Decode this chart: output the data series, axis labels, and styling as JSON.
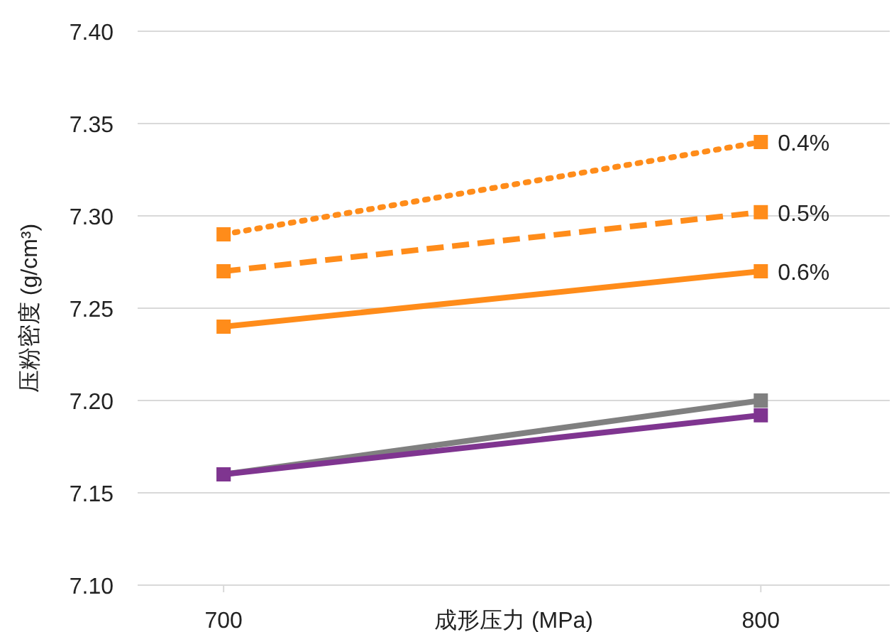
{
  "chart_data": {
    "type": "line",
    "xlabel": "成形压力 (MPa)",
    "ylabel": "压粉密度 (g/cm³)",
    "x": [
      700,
      800
    ],
    "xlim": [
      684,
      824
    ],
    "xticks": [
      700,
      800
    ],
    "ylim": [
      7.1,
      7.4
    ],
    "yticks": [
      {
        "value": 7.1,
        "label": "7.10"
      },
      7.15,
      {
        "value": 7.2,
        "label": "7.20"
      },
      7.25,
      {
        "value": 7.3,
        "label": "7.30"
      },
      7.35,
      {
        "value": 7.4,
        "label": "7.40"
      }
    ],
    "grid": "y",
    "marker": "square",
    "series": [
      {
        "name": "0.4%",
        "color": "#ff8c1a",
        "line_style": "dotted",
        "values": [
          7.29,
          7.34
        ]
      },
      {
        "name": "0.5%",
        "color": "#ff8c1a",
        "line_style": "dashed",
        "values": [
          7.27,
          7.302
        ]
      },
      {
        "name": "0.6%",
        "color": "#ff8c1a",
        "line_style": "solid",
        "values": [
          7.24,
          7.27
        ]
      },
      {
        "color": "#808080",
        "line_style": "solid",
        "values": [
          7.16,
          7.2
        ]
      },
      {
        "color": "#7f3590",
        "line_style": "solid",
        "values": [
          7.16,
          7.192
        ]
      }
    ]
  }
}
